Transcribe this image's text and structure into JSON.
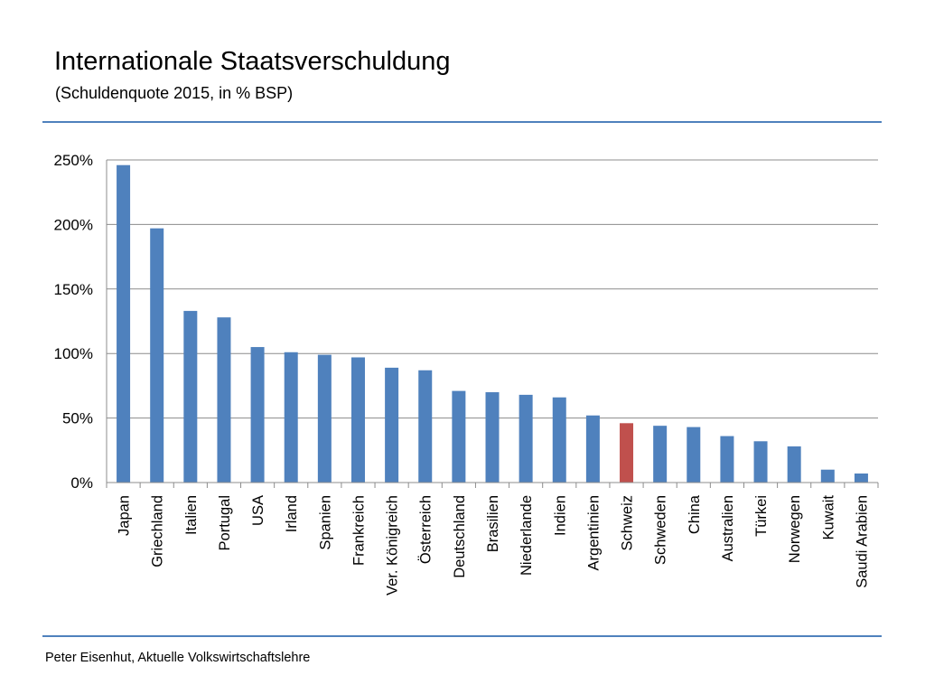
{
  "header": {
    "title": "Internationale Staatsverschuldung",
    "subtitle": "(Schuldenquote 2015, in % BSP)"
  },
  "footer": {
    "text": "Peter Eisenhut, Aktuelle Volkswirtschaftslehre"
  },
  "colors": {
    "bar": "#4f81bd",
    "highlight": "#c0504d",
    "rule": "#4f81bd",
    "grid": "#8c8c8c"
  },
  "chart_data": {
    "type": "bar",
    "title": "",
    "xlabel": "",
    "ylabel": "",
    "ylim": [
      0,
      250
    ],
    "yticks": [
      0,
      50,
      100,
      150,
      200,
      250
    ],
    "ytick_labels": [
      "0%",
      "50%",
      "100%",
      "150%",
      "200%",
      "250%"
    ],
    "grid": true,
    "legend": "none",
    "highlight_category": "Schweiz",
    "categories": [
      "Japan",
      "Griechland",
      "Italien",
      "Portugal",
      "USA",
      "Irland",
      "Spanien",
      "Frankreich",
      "Ver. Königreich",
      "Österreich",
      "Deutschland",
      "Brasilien",
      "Niederlande",
      "Indien",
      "Argentinien",
      "Schweiz",
      "Schweden",
      "China",
      "Australien",
      "Türkei",
      "Norwegen",
      "Kuwait",
      "Saudi Arabien"
    ],
    "values": [
      246,
      197,
      133,
      128,
      105,
      101,
      99,
      97,
      89,
      87,
      71,
      70,
      68,
      66,
      52,
      46,
      44,
      43,
      36,
      32,
      28,
      10,
      7
    ]
  }
}
